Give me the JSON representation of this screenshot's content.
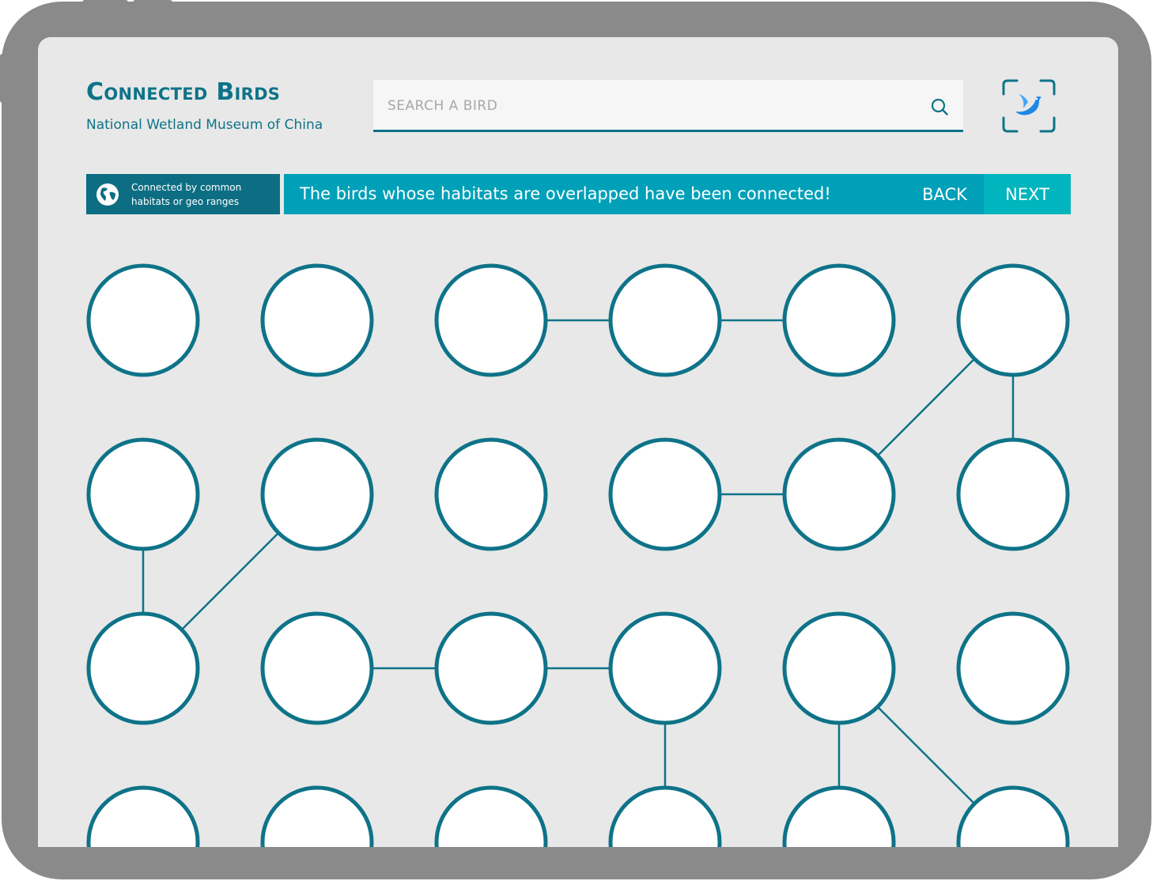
{
  "app": {
    "title": "Connected Birds",
    "subtitle": "National Wetland Museum of China"
  },
  "search": {
    "placeholder": "SEARCH A BIRD",
    "value": ""
  },
  "legend": {
    "icon": "globe-icon",
    "text": "Connected by common habitats or geo ranges"
  },
  "banner": {
    "message": "The birds whose habitats are overlapped have been connected!",
    "back_label": "BACK",
    "next_label": "NEXT"
  },
  "colors": {
    "primary": "#0e7388",
    "banner": "#00a0b8",
    "next": "#00b5bd",
    "background": "#e8e8e8",
    "device": "#8a8a8a"
  },
  "network": {
    "columns": 6,
    "birds": [
      {
        "id": "great-auk",
        "row": 0,
        "col": 0,
        "colors": [
          "#c4703a",
          "#2b2b2b",
          "#efe6d6"
        ]
      },
      {
        "id": "spectacled-eider",
        "row": 0,
        "col": 1,
        "colors": [
          "#f2f2f2",
          "#1c1c1c",
          "#c8c8c8"
        ]
      },
      {
        "id": "passenger-pigeon",
        "row": 0,
        "col": 2,
        "colors": [
          "#eeeeee",
          "#6b7682",
          "#b85a32"
        ]
      },
      {
        "id": "carolina-parakeet",
        "row": 0,
        "col": 3,
        "colors": [
          "#ebe3cf",
          "#3d8a2e",
          "#d8502a"
        ]
      },
      {
        "id": "yellow-warbler-pair",
        "row": 0,
        "col": 4,
        "colors": [
          "#f1efe4",
          "#d9d22a",
          "#6b6b6b"
        ]
      },
      {
        "id": "baltimore-oriole",
        "row": 0,
        "col": 5,
        "colors": [
          "#5f8a45",
          "#f08c1c",
          "#1d1d1d"
        ]
      },
      {
        "id": "superb-fairywren",
        "row": 1,
        "col": 0,
        "colors": [
          "#9aa0a6",
          "#1e3a9a",
          "#e4e0d8"
        ]
      },
      {
        "id": "blue-jay",
        "row": 1,
        "col": 1,
        "colors": [
          "#c9d6e6",
          "#2f64b5",
          "#f3f3f3"
        ]
      },
      {
        "id": "common-rosefinch",
        "row": 1,
        "col": 2,
        "colors": [
          "#c88a8a",
          "#d23f63",
          "#6c8a4a"
        ]
      },
      {
        "id": "emerald-tanager",
        "row": 1,
        "col": 3,
        "colors": [
          "#7c7a74",
          "#3fae3a",
          "#222222"
        ]
      },
      {
        "id": "blue-tit",
        "row": 1,
        "col": 4,
        "colors": [
          "#2f3a2e",
          "#c2c43a",
          "#3e64a8"
        ]
      },
      {
        "id": "prairie-warbler",
        "row": 1,
        "col": 5,
        "colors": [
          "#8c9a5a",
          "#e4d62a",
          "#3a3a2a"
        ]
      },
      {
        "id": "great-blue-heron",
        "row": 2,
        "col": 0,
        "colors": [
          "#7f8e6a",
          "#506070",
          "#e0a042"
        ]
      },
      {
        "id": "night-heron",
        "row": 2,
        "col": 1,
        "colors": [
          "#6c7a4a",
          "#7a8aa0",
          "#c24a2a"
        ]
      },
      {
        "id": "blue-gray-gnatcatcher",
        "row": 2,
        "col": 2,
        "colors": [
          "#7a6a46",
          "#a3b2c6",
          "#f2f2f2"
        ]
      },
      {
        "id": "azure-tit",
        "row": 2,
        "col": 3,
        "colors": [
          "#9aa44a",
          "#2a4aa0",
          "#f4f4f4"
        ]
      },
      {
        "id": "tree-sparrow",
        "row": 2,
        "col": 4,
        "colors": [
          "#7a8a4a",
          "#7a4a2a",
          "#eeeeee"
        ]
      },
      {
        "id": "frigatebird",
        "row": 2,
        "col": 5,
        "colors": [
          "#e6e6e6",
          "#2a2a2a",
          "#e22a2a"
        ]
      },
      {
        "id": "grassland-sparrow",
        "row": 3,
        "col": 0,
        "colors": [
          "#8a9a6a",
          "#5a4a3a",
          "#d0c8b0"
        ]
      },
      {
        "id": "black-and-white-warbler",
        "row": 3,
        "col": 1,
        "colors": [
          "#8a8a8a",
          "#1a1a1a",
          "#f4f4f4"
        ]
      },
      {
        "id": "blue-headed-finch",
        "row": 3,
        "col": 2,
        "colors": [
          "#a08a5a",
          "#5ab0d0",
          "#6a3a2a"
        ]
      },
      {
        "id": "eurasian-blue-tit",
        "row": 3,
        "col": 3,
        "colors": [
          "#6a8a3a",
          "#3a6ab0",
          "#e8e04a"
        ]
      },
      {
        "id": "european-robin",
        "row": 3,
        "col": 4,
        "colors": [
          "#7a7a6a",
          "#e07a3a",
          "#8a7a5a"
        ]
      },
      {
        "id": "white-breasted-nuthatch",
        "row": 3,
        "col": 5,
        "colors": [
          "#6a6a6a",
          "#8aa0b8",
          "#f4f4f4"
        ]
      }
    ],
    "links": [
      [
        "passenger-pigeon",
        "carolina-parakeet"
      ],
      [
        "carolina-parakeet",
        "yellow-warbler-pair"
      ],
      [
        "baltimore-oriole",
        "prairie-warbler"
      ],
      [
        "baltimore-oriole",
        "blue-tit"
      ],
      [
        "emerald-tanager",
        "blue-tit"
      ],
      [
        "superb-fairywren",
        "great-blue-heron"
      ],
      [
        "blue-jay",
        "great-blue-heron"
      ],
      [
        "night-heron",
        "blue-gray-gnatcatcher"
      ],
      [
        "blue-gray-gnatcatcher",
        "azure-tit"
      ],
      [
        "azure-tit",
        "eurasian-blue-tit"
      ],
      [
        "tree-sparrow",
        "european-robin"
      ],
      [
        "tree-sparrow",
        "white-breasted-nuthatch"
      ]
    ]
  }
}
